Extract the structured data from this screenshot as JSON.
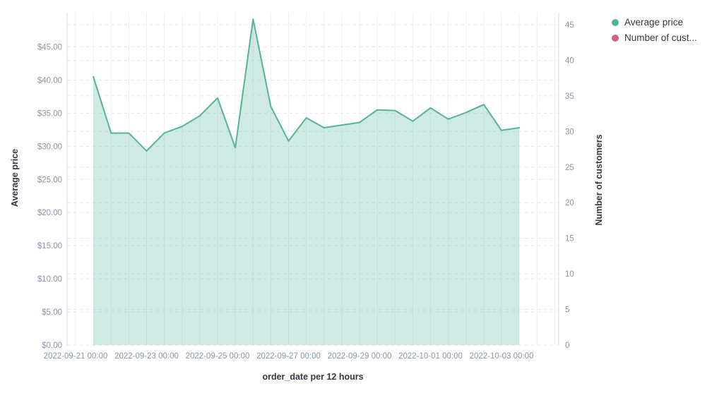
{
  "colors": {
    "series_green": "#54b399",
    "series_green_fill": "rgba(84,179,153,0.28)",
    "series_pink": "#d36086",
    "tick_label": "#8a94a6",
    "axis_title": "#343741",
    "vertical_gridline": "#edf0f4",
    "dashed_gridline": "#e3e7ee",
    "axis_line": "#d8dee8",
    "background": "#ffffff"
  },
  "legend": {
    "items": [
      {
        "label": "Average price",
        "color": "#54b399"
      },
      {
        "label": "Number of cust...",
        "color": "#d36086"
      }
    ]
  },
  "chart_data": {
    "type": "area",
    "title": "",
    "x_interval": "12 hours",
    "x": [
      "2022-09-21 12:00",
      "2022-09-22 00:00",
      "2022-09-22 12:00",
      "2022-09-23 00:00",
      "2022-09-23 12:00",
      "2022-09-24 00:00",
      "2022-09-24 12:00",
      "2022-09-25 00:00",
      "2022-09-25 12:00",
      "2022-09-26 00:00",
      "2022-09-26 12:00",
      "2022-09-27 00:00",
      "2022-09-27 12:00",
      "2022-09-28 00:00",
      "2022-09-28 12:00",
      "2022-09-29 00:00",
      "2022-09-29 12:00",
      "2022-09-30 00:00",
      "2022-09-30 12:00",
      "2022-10-01 00:00",
      "2022-10-01 12:00",
      "2022-10-02 00:00",
      "2022-10-02 12:00",
      "2022-10-03 00:00",
      "2022-10-03 12:00"
    ],
    "series": [
      {
        "name": "Average price",
        "axis": "left",
        "color": "#54b399",
        "values": [
          40.5,
          32.0,
          32.0,
          29.3,
          32.0,
          33.0,
          34.6,
          37.3,
          29.8,
          49.2,
          36.0,
          30.8,
          34.3,
          32.8,
          33.2,
          33.6,
          35.5,
          35.4,
          33.8,
          35.8,
          34.1,
          35.1,
          36.3,
          32.4,
          32.8
        ]
      },
      {
        "name": "Number of cust...",
        "axis": "right",
        "color": "#d36086",
        "values": []
      }
    ],
    "x_axis": {
      "label": "order_date per 12 hours",
      "tick_labels": [
        "2022-09-21 00:00",
        "2022-09-23 00:00",
        "2022-09-25 00:00",
        "2022-09-27 00:00",
        "2022-09-29 00:00",
        "2022-10-01 00:00",
        "2022-10-03 00:00"
      ],
      "ticks_every_n_intervals": 4,
      "gridline_count": 28
    },
    "y_axis_left": {
      "label": "Average price",
      "tick_values": [
        0,
        5,
        10,
        15,
        20,
        25,
        30,
        35,
        40,
        45
      ],
      "tick_labels": [
        "$0.00",
        "$5.00",
        "$10.00",
        "$15.00",
        "$20.00",
        "$25.00",
        "$30.00",
        "$35.00",
        "$40.00",
        "$45.00"
      ],
      "range": [
        0,
        50.5
      ]
    },
    "y_axis_right": {
      "label": "Number of customers",
      "tick_values": [
        0,
        5,
        10,
        15,
        20,
        25,
        30,
        35,
        40,
        45
      ],
      "tick_labels": [
        "0",
        "5",
        "10",
        "15",
        "20",
        "25",
        "30",
        "35",
        "40",
        "45"
      ],
      "range": [
        0,
        47
      ]
    },
    "grid": {
      "horizontal_dashed": true,
      "vertical_solid": true
    },
    "legend_position": "right"
  }
}
